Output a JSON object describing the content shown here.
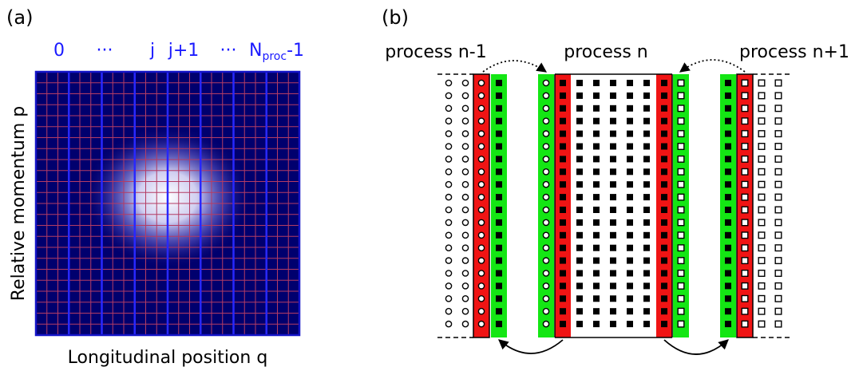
{
  "panel_a": {
    "tag": "(a)",
    "index_labels": [
      "0",
      "···",
      "j",
      "j+1",
      "···"
    ],
    "nproc_label": {
      "base": "N",
      "sub": "proc",
      "suffix": "-1"
    },
    "y_axis_label": "Relative momentum p",
    "x_axis_label": "Longitudinal position q",
    "grid_cells": 24,
    "process_columns": 8,
    "colors": {
      "frame": "#1414c8",
      "fine_grid": "#b43c64",
      "proc_lines": "#2828ff",
      "background": "#00006e",
      "blob": "#ffffff"
    }
  },
  "panel_b": {
    "tag": "(b)",
    "process_labels": [
      "process n-1",
      "process n",
      "process n+1"
    ],
    "rows": 20,
    "colors": {
      "ghost_green": "#14e614",
      "ghost_red": "#f01414",
      "marker": "#000000"
    }
  }
}
